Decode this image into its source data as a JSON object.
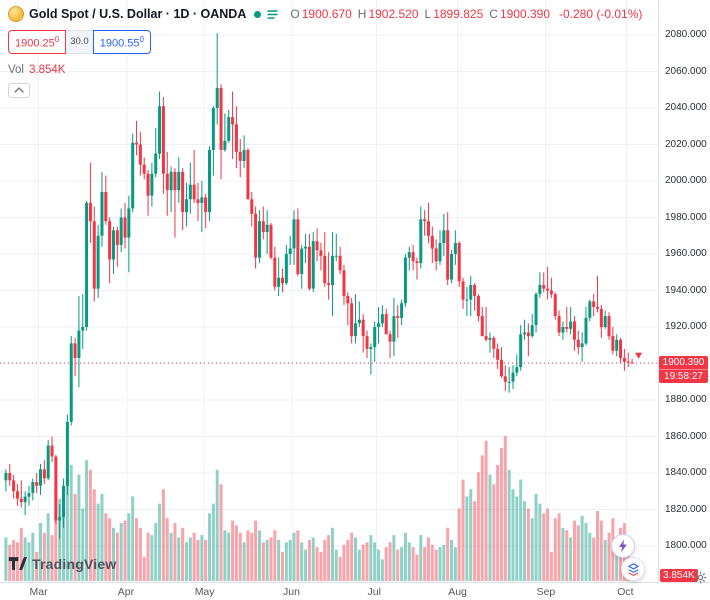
{
  "window": {
    "title": "Gold Spot / U.S. Dollar · 1D · OANDA"
  },
  "legend": {
    "symbol_title": "Gold Spot / U.S. Dollar · 1D · OANDA",
    "ohlc": [
      {
        "label": "O",
        "value": "1900.670"
      },
      {
        "label": "H",
        "value": "1902.520"
      },
      {
        "label": "L",
        "value": "1899.825"
      },
      {
        "label": "C",
        "value": "1900.390"
      }
    ],
    "change": "-0.280 (-0.01%)",
    "volume_row": {
      "label": "Vol",
      "value": "3.854K"
    }
  },
  "trade_buttons": {
    "sell": "1900.25",
    "sell_sup": "0",
    "spread": "30.0",
    "buy": "1900.55",
    "buy_sup": "0"
  },
  "price_axis": {
    "labels": [
      "2080.000",
      "2060.000",
      "2040.000",
      "2020.000",
      "2000.000",
      "1980.000",
      "1960.000",
      "1940.000",
      "1920.000",
      "1880.000",
      "1860.000",
      "1840.000",
      "1820.000",
      "1800.000"
    ],
    "current_price_label": "1900.390",
    "countdown": "19:58:27",
    "volume_badge": "3.854K"
  },
  "footer": {
    "logo_text": "TradingView"
  },
  "colors": {
    "up": "#089981",
    "down": "#f23645",
    "vol_up": "rgba(8,153,129,0.45)",
    "vol_down": "rgba(242,54,69,0.45)",
    "buy_blue": "#2962ff",
    "grid": "#eef1f7",
    "axis_text": "#2a2e39",
    "badge_red": "#f23645"
  },
  "chart_data": {
    "type": "candlestick",
    "symbol": "Gold Spot / U.S. Dollar",
    "interval": "1D",
    "exchange": "OANDA",
    "ohlc_last": {
      "open": 1900.67,
      "high": 1902.52,
      "low": 1899.825,
      "close": 1900.39,
      "change": -0.28,
      "change_pct": -0.01
    },
    "current_price": 1900.39,
    "countdown": "19:58:27",
    "visible_price_range": [
      1780,
      2099
    ],
    "grid_step": 20,
    "volume_units": "K",
    "last_volume": 3.854,
    "volume_max_scale": 60,
    "fields": [
      "open",
      "high",
      "low",
      "close",
      "volume_k"
    ],
    "months": [
      {
        "label": "Mar",
        "index": 9
      },
      {
        "label": "Apr",
        "index": 32
      },
      {
        "label": "May",
        "index": 52
      },
      {
        "label": "Jun",
        "index": 75
      },
      {
        "label": "Jul",
        "index": 97
      },
      {
        "label": "Aug",
        "index": 118
      },
      {
        "label": "Sep",
        "index": 141
      },
      {
        "label": "Oct",
        "index": 162
      }
    ],
    "candles": [
      [
        1836,
        1842,
        1830,
        1840,
        18
      ],
      [
        1840,
        1845,
        1833,
        1836,
        15
      ],
      [
        1836,
        1839,
        1826,
        1830,
        17
      ],
      [
        1830,
        1834,
        1822,
        1826,
        16
      ],
      [
        1826,
        1836,
        1821,
        1824,
        22
      ],
      [
        1824,
        1830,
        1817,
        1827,
        18
      ],
      [
        1827,
        1833,
        1822,
        1829,
        16
      ],
      [
        1829,
        1837,
        1825,
        1835,
        20
      ],
      [
        1835,
        1840,
        1829,
        1833,
        12
      ],
      [
        1833,
        1845,
        1828,
        1842,
        24
      ],
      [
        1842,
        1847,
        1834,
        1837,
        20
      ],
      [
        1837,
        1858,
        1836,
        1855,
        28
      ],
      [
        1855,
        1860,
        1846,
        1849,
        19
      ],
      [
        1849,
        1850,
        1812,
        1814,
        38
      ],
      [
        1814,
        1823,
        1804,
        1816,
        34
      ],
      [
        1816,
        1837,
        1810,
        1833,
        29
      ],
      [
        1833,
        1872,
        1828,
        1868,
        42
      ],
      [
        1868,
        1915,
        1866,
        1911,
        48
      ],
      [
        1911,
        1914,
        1893,
        1903,
        36
      ],
      [
        1903,
        1937,
        1887,
        1918,
        44
      ],
      [
        1918,
        1938,
        1908,
        1920,
        30
      ],
      [
        1920,
        1989,
        1918,
        1988,
        50
      ],
      [
        1988,
        2010,
        1966,
        1978,
        46
      ],
      [
        1978,
        1986,
        1934,
        1941,
        38
      ],
      [
        1941,
        1976,
        1936,
        1970,
        32
      ],
      [
        1970,
        2005,
        1964,
        1994,
        36
      ],
      [
        1994,
        2003,
        1976,
        1978,
        28
      ],
      [
        1978,
        1980,
        1944,
        1957,
        26
      ],
      [
        1957,
        1975,
        1949,
        1973,
        22
      ],
      [
        1973,
        1975,
        1953,
        1965,
        20
      ],
      [
        1965,
        1985,
        1961,
        1980,
        24
      ],
      [
        1980,
        1988,
        1963,
        1969,
        25
      ],
      [
        1969,
        1992,
        1950,
        1985,
        28
      ],
      [
        1985,
        2026,
        1983,
        2021,
        35
      ],
      [
        2021,
        2033,
        2014,
        2020,
        26
      ],
      [
        2020,
        2027,
        2003,
        2009,
        22
      ],
      [
        2009,
        2013,
        2001,
        2004,
        10
      ],
      [
        2004,
        2006,
        1981,
        1992,
        20
      ],
      [
        1992,
        2010,
        1986,
        2004,
        19
      ],
      [
        2004,
        2029,
        2002,
        2015,
        24
      ],
      [
        2015,
        2049,
        2012,
        2041,
        32
      ],
      [
        2041,
        2046,
        1993,
        2004,
        38
      ],
      [
        2004,
        2016,
        1981,
        1995,
        26
      ],
      [
        1995,
        2008,
        1983,
        2005,
        20
      ],
      [
        2005,
        2007,
        1969,
        1995,
        24
      ],
      [
        1995,
        2013,
        1988,
        2005,
        18
      ],
      [
        2005,
        2007,
        1973,
        1983,
        22
      ],
      [
        1983,
        1999,
        1975,
        1990,
        16
      ],
      [
        1990,
        2010,
        1982,
        1998,
        18
      ],
      [
        1998,
        2017,
        1988,
        1990,
        20
      ],
      [
        1990,
        1999,
        1978,
        1988,
        17
      ],
      [
        1988,
        2000,
        1972,
        1991,
        19
      ],
      [
        1991,
        1993,
        1974,
        1983,
        17
      ],
      [
        1983,
        2019,
        1978,
        2017,
        28
      ],
      [
        2017,
        2041,
        2003,
        2040,
        32
      ],
      [
        2040,
        2081,
        2031,
        2051,
        46
      ],
      [
        2051,
        2053,
        2001,
        2017,
        40
      ],
      [
        2017,
        2037,
        2016,
        2022,
        21
      ],
      [
        2022,
        2039,
        2021,
        2035,
        20
      ],
      [
        2035,
        2049,
        2012,
        2031,
        25
      ],
      [
        2031,
        2041,
        2007,
        2016,
        23
      ],
      [
        2016,
        2023,
        2002,
        2011,
        20
      ],
      [
        2011,
        2025,
        2007,
        2017,
        16
      ],
      [
        2017,
        2018,
        1990,
        1990,
        21
      ],
      [
        1990,
        1994,
        1975,
        1982,
        20
      ],
      [
        1982,
        1986,
        1952,
        1958,
        25
      ],
      [
        1958,
        1984,
        1955,
        1978,
        21
      ],
      [
        1978,
        1986,
        1968,
        1972,
        16
      ],
      [
        1972,
        1984,
        1960,
        1976,
        17
      ],
      [
        1976,
        1977,
        1957,
        1958,
        18
      ],
      [
        1958,
        1964,
        1940,
        1942,
        21
      ],
      [
        1942,
        1958,
        1937,
        1947,
        17
      ],
      [
        1947,
        1952,
        1939,
        1944,
        12
      ],
      [
        1944,
        1965,
        1943,
        1960,
        16
      ],
      [
        1960,
        1970,
        1954,
        1963,
        17
      ],
      [
        1963,
        1984,
        1954,
        1979,
        20
      ],
      [
        1979,
        1985,
        1948,
        1949,
        21
      ],
      [
        1949,
        1965,
        1941,
        1963,
        16
      ],
      [
        1963,
        1971,
        1955,
        1964,
        13
      ],
      [
        1964,
        1971,
        1940,
        1941,
        17
      ],
      [
        1941,
        1972,
        1939,
        1967,
        18
      ],
      [
        1967,
        1974,
        1956,
        1962,
        14
      ],
      [
        1962,
        1966,
        1951,
        1959,
        12
      ],
      [
        1959,
        1972,
        1942,
        1944,
        17
      ],
      [
        1944,
        1961,
        1935,
        1943,
        19
      ],
      [
        1943,
        1972,
        1926,
        1959,
        22
      ],
      [
        1959,
        1971,
        1956,
        1959,
        13
      ],
      [
        1959,
        1964,
        1949,
        1951,
        10
      ],
      [
        1951,
        1954,
        1932,
        1937,
        15
      ],
      [
        1937,
        1939,
        1921,
        1933,
        17
      ],
      [
        1933,
        1936,
        1911,
        1915,
        20
      ],
      [
        1915,
        1938,
        1911,
        1922,
        18
      ],
      [
        1922,
        1934,
        1920,
        1924,
        13
      ],
      [
        1924,
        1927,
        1906,
        1915,
        15
      ],
      [
        1915,
        1918,
        1903,
        1908,
        16
      ],
      [
        1908,
        1911,
        1894,
        1909,
        19
      ],
      [
        1909,
        1923,
        1901,
        1920,
        16
      ],
      [
        1920,
        1931,
        1911,
        1922,
        13
      ],
      [
        1922,
        1932,
        1920,
        1927,
        9
      ],
      [
        1927,
        1930,
        1916,
        1916,
        14
      ],
      [
        1916,
        1918,
        1903,
        1912,
        16
      ],
      [
        1912,
        1936,
        1904,
        1926,
        19
      ],
      [
        1926,
        1932,
        1914,
        1925,
        13
      ],
      [
        1925,
        1935,
        1921,
        1933,
        14
      ],
      [
        1933,
        1960,
        1931,
        1958,
        20
      ],
      [
        1958,
        1964,
        1951,
        1961,
        16
      ],
      [
        1961,
        1965,
        1951,
        1956,
        14
      ],
      [
        1956,
        1958,
        1946,
        1955,
        11
      ],
      [
        1955,
        1986,
        1952,
        1979,
        19
      ],
      [
        1979,
        1984,
        1970,
        1978,
        14
      ],
      [
        1978,
        1988,
        1966,
        1970,
        18
      ],
      [
        1970,
        1975,
        1955,
        1963,
        15
      ],
      [
        1963,
        1968,
        1951,
        1956,
        13
      ],
      [
        1956,
        1973,
        1954,
        1966,
        14
      ],
      [
        1966,
        1982,
        1959,
        1973,
        15
      ],
      [
        1973,
        1983,
        1943,
        1946,
        22
      ],
      [
        1946,
        1962,
        1944,
        1960,
        17
      ],
      [
        1960,
        1973,
        1954,
        1966,
        14
      ],
      [
        1966,
        1967,
        1942,
        1945,
        30
      ],
      [
        1945,
        1947,
        1930,
        1935,
        42
      ],
      [
        1935,
        1942,
        1926,
        1935,
        35
      ],
      [
        1935,
        1948,
        1926,
        1943,
        38
      ],
      [
        1943,
        1944,
        1929,
        1937,
        33
      ],
      [
        1937,
        1938,
        1923,
        1926,
        45
      ],
      [
        1926,
        1931,
        1915,
        1915,
        52
      ],
      [
        1915,
        1931,
        1912,
        1913,
        58
      ],
      [
        1913,
        1917,
        1906,
        1914,
        44
      ],
      [
        1914,
        1915,
        1903,
        1908,
        40
      ],
      [
        1908,
        1911,
        1897,
        1902,
        48
      ],
      [
        1902,
        1909,
        1892,
        1893,
        55
      ],
      [
        1893,
        1899,
        1885,
        1890,
        60
      ],
      [
        1890,
        1898,
        1884,
        1890,
        46
      ],
      [
        1890,
        1899,
        1886,
        1895,
        38
      ],
      [
        1895,
        1905,
        1893,
        1898,
        35
      ],
      [
        1898,
        1921,
        1896,
        1916,
        42
      ],
      [
        1916,
        1924,
        1913,
        1917,
        33
      ],
      [
        1917,
        1922,
        1904,
        1915,
        30
      ],
      [
        1915,
        1927,
        1914,
        1921,
        26
      ],
      [
        1921,
        1939,
        1917,
        1938,
        36
      ],
      [
        1938,
        1950,
        1936,
        1943,
        32
      ],
      [
        1943,
        1950,
        1939,
        1941,
        28
      ],
      [
        1941,
        1953,
        1935,
        1940,
        30
      ],
      [
        1940,
        1947,
        1936,
        1938,
        12
      ],
      [
        1938,
        1939,
        1924,
        1926,
        26
      ],
      [
        1926,
        1929,
        1915,
        1917,
        28
      ],
      [
        1917,
        1923,
        1913,
        1920,
        22
      ],
      [
        1920,
        1931,
        1917,
        1919,
        21
      ],
      [
        1919,
        1931,
        1916,
        1923,
        18
      ],
      [
        1923,
        1926,
        1907,
        1913,
        25
      ],
      [
        1913,
        1918,
        1905,
        1909,
        23
      ],
      [
        1909,
        1917,
        1901,
        1911,
        27
      ],
      [
        1911,
        1931,
        1910,
        1925,
        24
      ],
      [
        1925,
        1935,
        1923,
        1934,
        20
      ],
      [
        1934,
        1938,
        1926,
        1931,
        18
      ],
      [
        1931,
        1948,
        1928,
        1930,
        29
      ],
      [
        1930,
        1932,
        1914,
        1920,
        25
      ],
      [
        1920,
        1929,
        1919,
        1926,
        17
      ],
      [
        1926,
        1928,
        1913,
        1915,
        20
      ],
      [
        1915,
        1920,
        1905,
        1907,
        26
      ],
      [
        1907,
        1916,
        1904,
        1913,
        18
      ],
      [
        1913,
        1914,
        1900,
        1903,
        22
      ],
      [
        1903,
        1908,
        1896,
        1901,
        24
      ],
      [
        1901,
        1906,
        1898,
        1900.67,
        16
      ],
      [
        1900.67,
        1902.52,
        1899.825,
        1900.39,
        3.854
      ]
    ]
  }
}
